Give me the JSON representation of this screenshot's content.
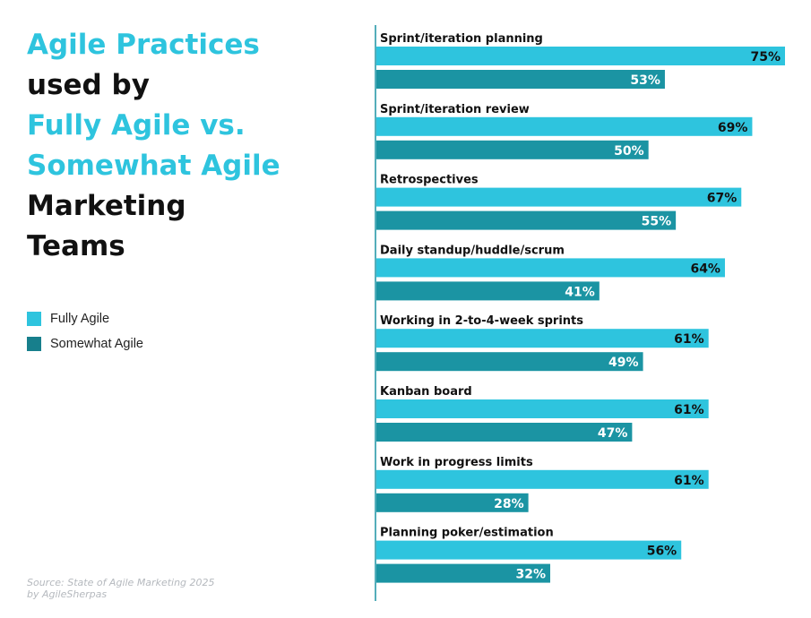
{
  "title_lines": [
    {
      "text": "Agile Practices",
      "style": "accent"
    },
    {
      "text": "used by",
      "style": "dark"
    },
    {
      "text": "Fully Agile vs.",
      "style": "accent"
    },
    {
      "text": "Somewhat Agile",
      "style": "accent"
    },
    {
      "text": "Marketing",
      "style": "dark"
    },
    {
      "text": "Teams",
      "style": "dark"
    }
  ],
  "colors": {
    "accent": "#2ec4de",
    "fully_agile": "#2ec4de",
    "somewhat_agile": "#1b94a3",
    "axis_line": "#1b94a3",
    "title_dark": "#111111"
  },
  "legend": [
    {
      "label": "Fully Agile",
      "color": "#2ec4de"
    },
    {
      "label": "Somewhat Agile",
      "color": "#177f8c"
    }
  ],
  "source": {
    "line1": "Source: State of Agile Marketing 2025",
    "line2": "by AgileSherpas"
  },
  "chart_data": {
    "type": "bar",
    "orientation": "horizontal",
    "categories": [
      "Sprint/iteration planning",
      "Sprint/iteration review",
      "Retrospectives",
      "Daily standup/huddle/scrum",
      "Working in 2-to-4-week sprints",
      "Kanban board",
      "Work in progress limits",
      "Planning poker/estimation"
    ],
    "series": [
      {
        "name": "Fully Agile",
        "values": [
          75,
          69,
          67,
          64,
          61,
          61,
          61,
          56
        ]
      },
      {
        "name": "Somewhat Agile",
        "values": [
          53,
          50,
          55,
          41,
          49,
          47,
          28,
          32
        ]
      }
    ],
    "value_suffix": "%",
    "xlim": [
      0,
      75
    ],
    "grid": false,
    "legend_position": "left"
  }
}
